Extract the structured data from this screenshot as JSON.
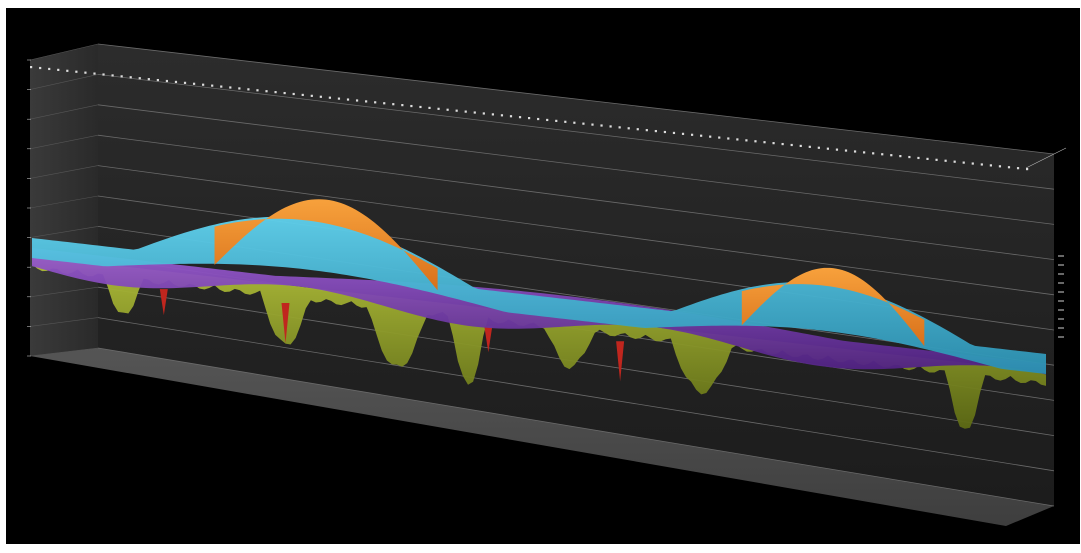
{
  "chart_data": {
    "type": "3d-surface",
    "title": "",
    "xlabel": "",
    "ylabel": "",
    "background": "#000000",
    "wall_color": "#3a3a3a",
    "floor_color": "#4a4a4a",
    "y_ticks": [
      "",
      "",
      "",
      "",
      "",
      "",
      "",
      "",
      "",
      "",
      ""
    ],
    "legend_entries": [
      "",
      "",
      "",
      "",
      "",
      "",
      "",
      "",
      "",
      ""
    ],
    "series": [
      {
        "color": "#f28c28",
        "peaks": [
          {
            "center": 0.29,
            "half_width": 0.11,
            "height": 0.52
          },
          {
            "center": 0.79,
            "half_width": 0.09,
            "height": 0.45
          }
        ]
      },
      {
        "color": "#3fb5d6",
        "peaks": [
          {
            "center": 0.27,
            "half_width": 0.18,
            "height": 0.38
          },
          {
            "center": 0.78,
            "half_width": 0.16,
            "height": 0.34
          }
        ]
      },
      {
        "color": "#7d3cb0",
        "peaks": [
          {
            "center": 0.52,
            "half_width": 0.28,
            "height": 0.22
          }
        ]
      },
      {
        "color": "#9aaa2a",
        "dips": [
          0.09,
          0.25,
          0.36,
          0.43,
          0.53,
          0.66,
          0.92
        ]
      },
      {
        "color": "#c0261e",
        "dips": [
          0.13,
          0.25,
          0.45,
          0.58
        ]
      }
    ]
  }
}
